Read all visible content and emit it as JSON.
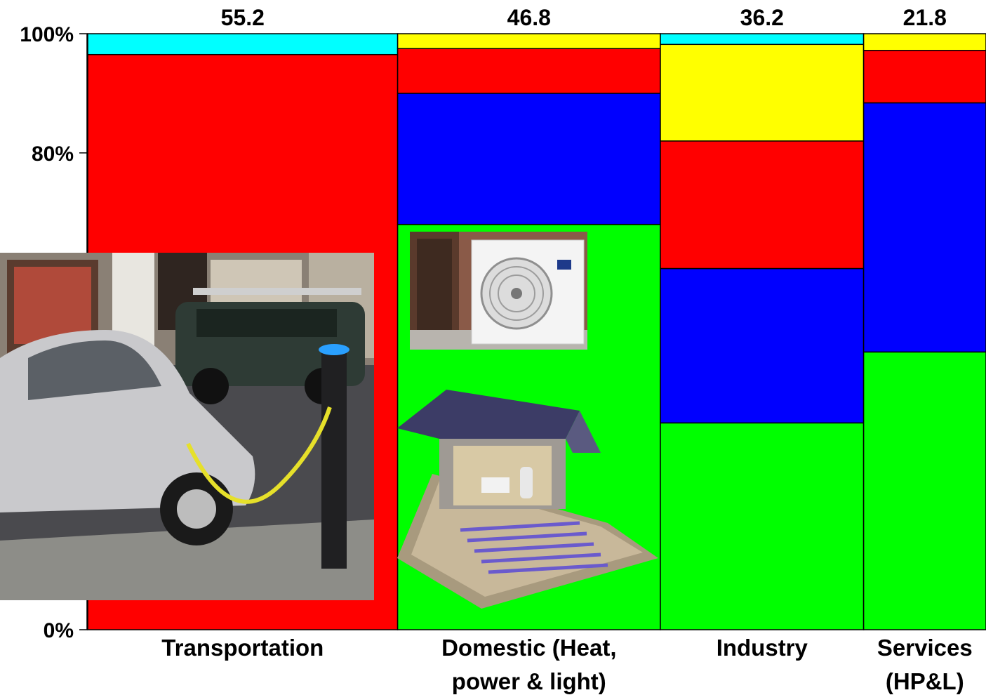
{
  "chart_data": {
    "type": "bar",
    "stacked": true,
    "variable_width": true,
    "categories": [
      {
        "lines": [
          "Transportation"
        ],
        "total": "55.2"
      },
      {
        "lines": [
          "Domestic (Heat,",
          "power & light)"
        ],
        "total": "46.8"
      },
      {
        "lines": [
          "Industry"
        ],
        "total": "36.2"
      },
      {
        "lines": [
          "Services",
          "(HP&L)"
        ],
        "total": "21.8"
      }
    ],
    "widths": [
      55.2,
      46.8,
      36.2,
      21.8
    ],
    "series_colors": [
      "#00ff00",
      "#0000ff",
      "#ff0000",
      "#ffff00",
      "#00ffff"
    ],
    "series_values_percent": [
      [
        0,
        0,
        96.5,
        0,
        3.5
      ],
      [
        68.0,
        22.0,
        7.5,
        2.5,
        0
      ],
      [
        34.7,
        25.9,
        21.4,
        16.2,
        1.8
      ],
      [
        46.6,
        41.8,
        8.8,
        2.8,
        0
      ]
    ],
    "y_ticks": [
      {
        "value": 0,
        "label": "0%"
      },
      {
        "value": 80,
        "label": "80%"
      },
      {
        "value": 100,
        "label": "100%"
      }
    ],
    "ylim": [
      0,
      100
    ],
    "grid": false
  },
  "images": {
    "ev": "electric-car-charging-photo",
    "heat_pump": "air-source-heat-pump-photo",
    "house": "ground-source-heat-pump-house-illustration"
  }
}
